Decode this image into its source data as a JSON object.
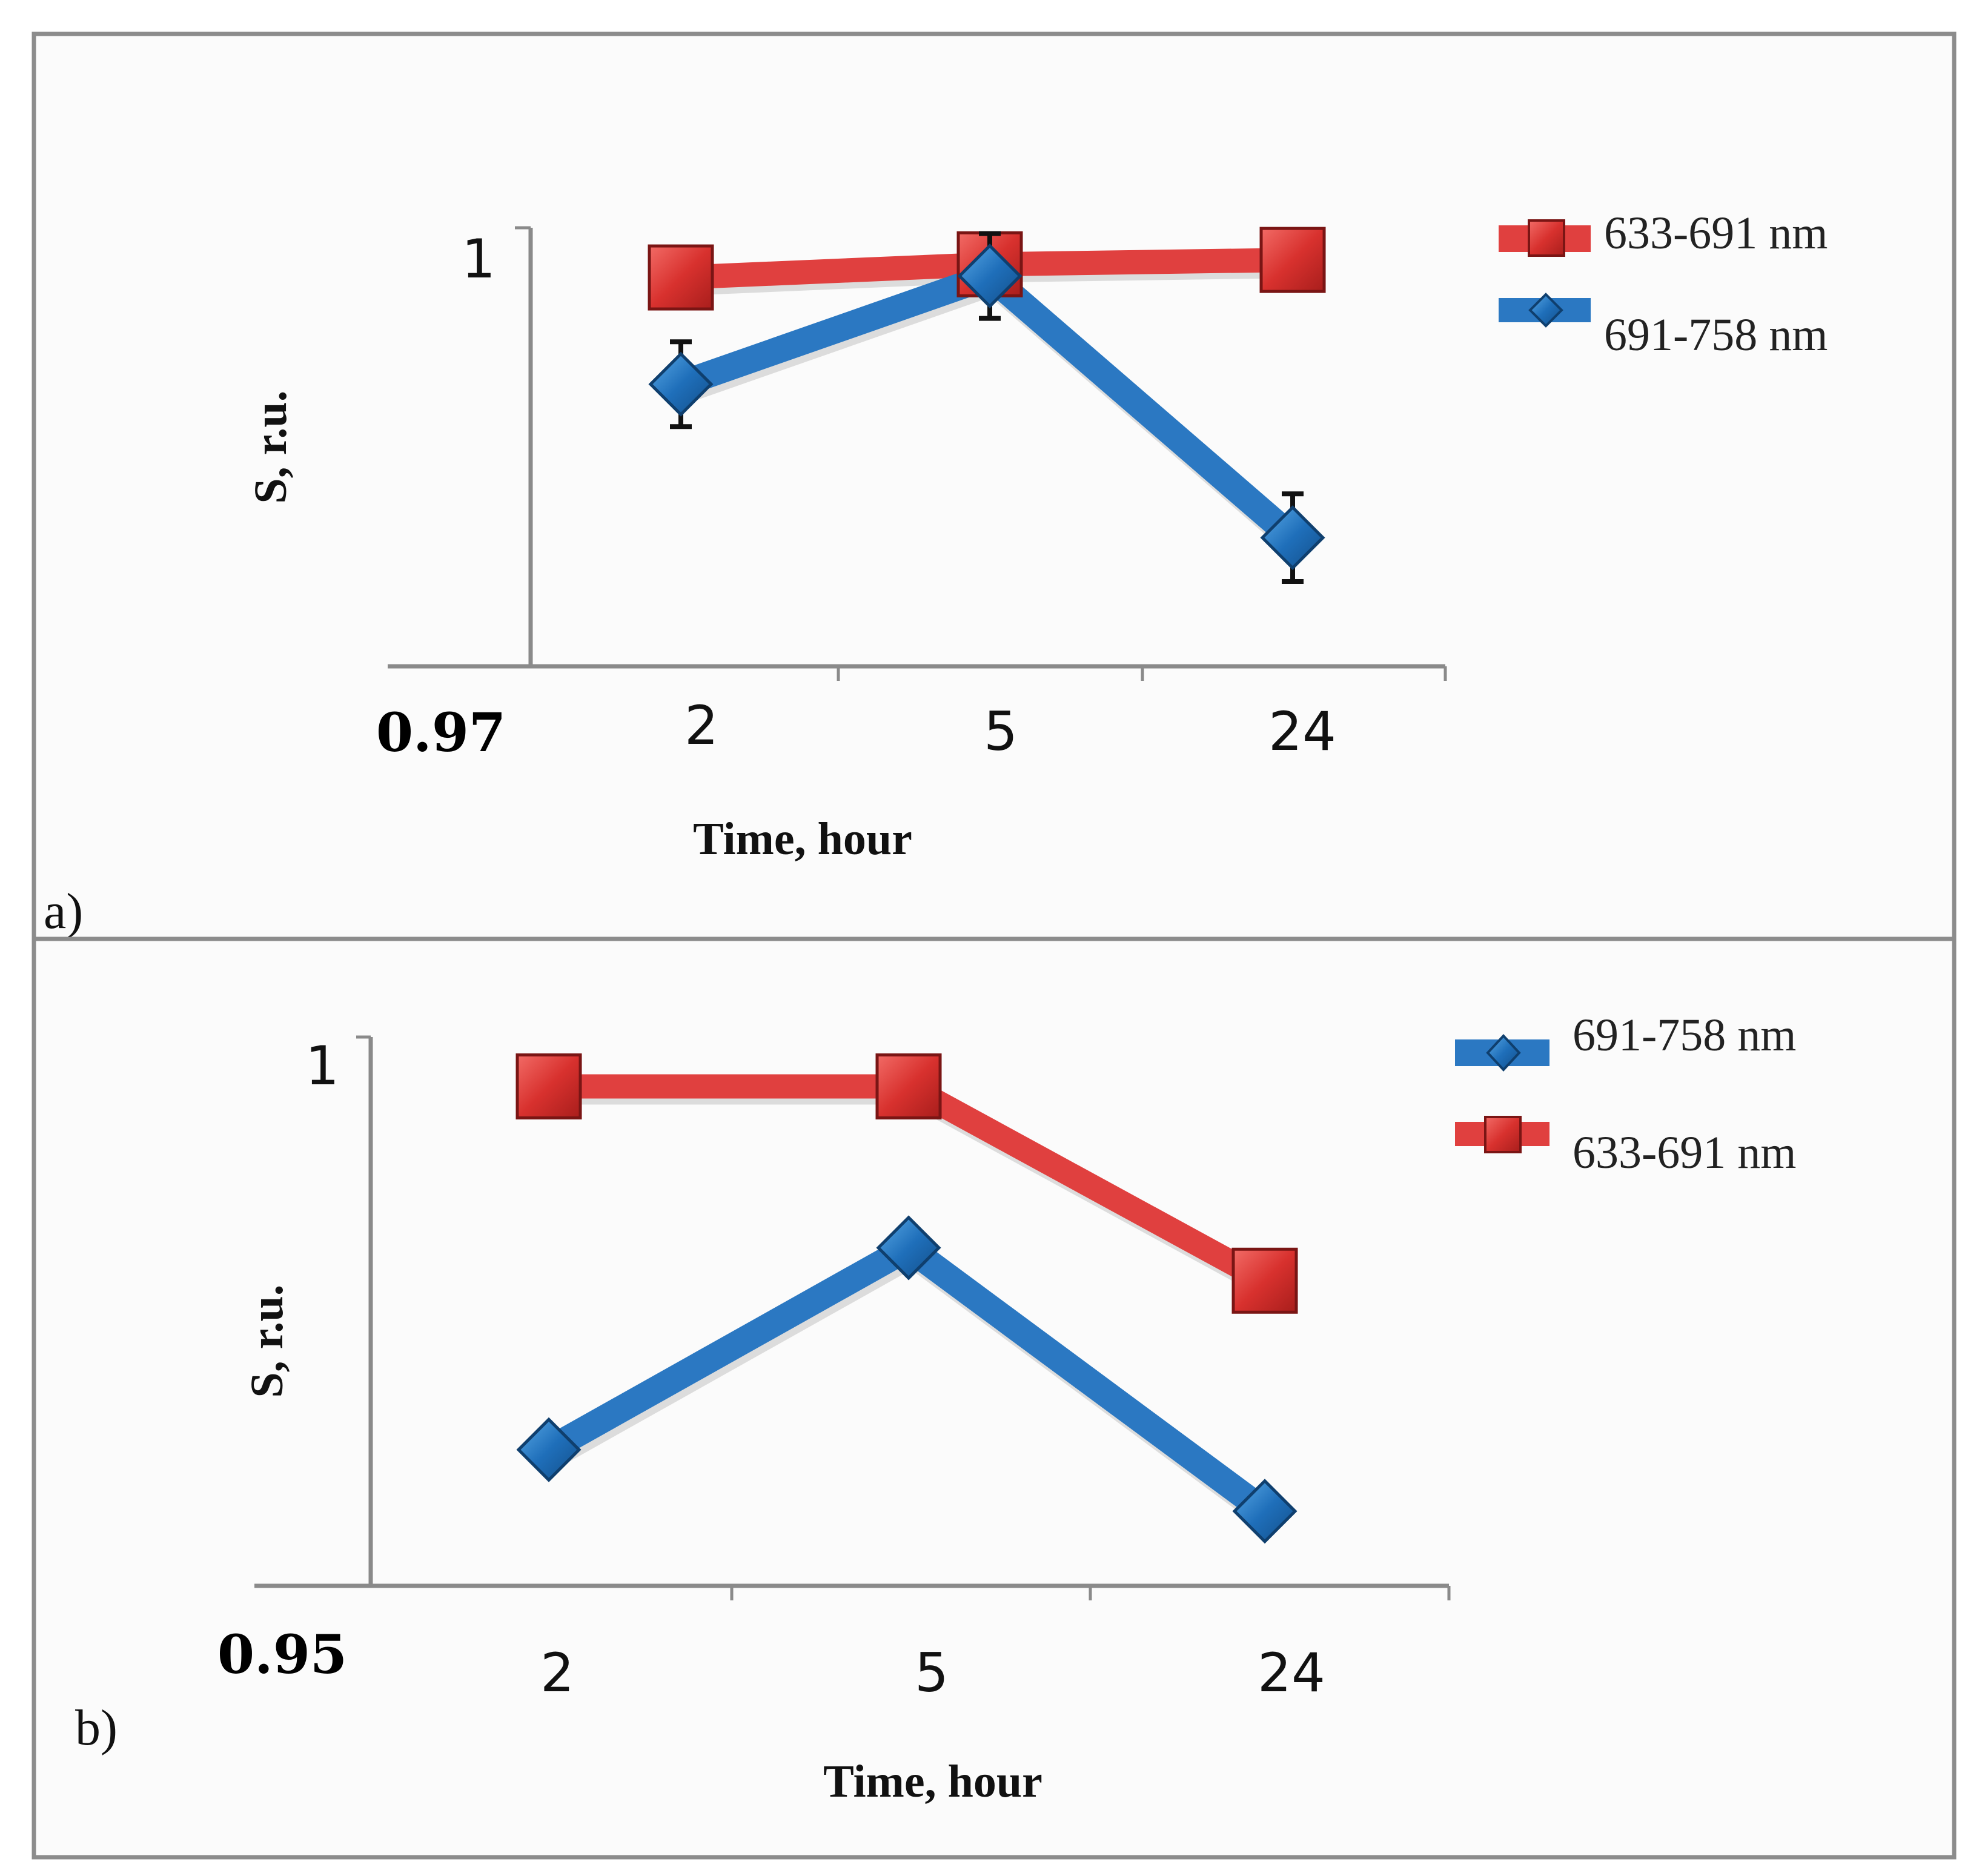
{
  "colors": {
    "red_series": "#e0403f",
    "red_marker": "#d8312e",
    "blue_series": "#2b78c2",
    "blue_marker": "#1f6fba"
  },
  "chart_data": [
    {
      "panel_label": "a)",
      "type": "line",
      "title": "",
      "xlabel": "Time, hour",
      "ylabel": "S, r.u.",
      "categories": [
        "2",
        "5",
        "24"
      ],
      "ylim": [
        0.97,
        1.0
      ],
      "y_tick_labels": {
        "min": "0.97",
        "max": "1"
      },
      "grid": false,
      "legend_position": "top-right",
      "series": [
        {
          "name": "633-691 nm",
          "marker": "square",
          "color": "red_series",
          "values": [
            0.9966,
            0.9975,
            0.9978
          ],
          "errors": [
            0.0,
            0.0,
            0.0
          ]
        },
        {
          "name": "691-758 nm",
          "marker": "diamond",
          "color": "blue_series",
          "values": [
            0.9893,
            0.9967,
            0.9788
          ],
          "errors": [
            0.0029,
            0.0029,
            0.003
          ]
        }
      ]
    },
    {
      "panel_label": "b)",
      "type": "line",
      "title": "",
      "xlabel": "Time, hour",
      "ylabel": "S, r.u.",
      "categories": [
        "2",
        "5",
        "24"
      ],
      "ylim": [
        0.95,
        1.0
      ],
      "y_tick_labels": {
        "min": "0.95",
        "max": "1"
      },
      "grid": false,
      "legend_position": "top-right",
      "series": [
        {
          "name": "691-758 nm",
          "marker": "diamond",
          "color": "blue_series",
          "values": [
            0.9624,
            0.9808,
            0.9568
          ],
          "errors": [
            0.0015,
            0.0015,
            0.0015
          ]
        },
        {
          "name": "633-691 nm",
          "marker": "square",
          "color": "red_series",
          "values": [
            0.9955,
            0.9955,
            0.9778
          ],
          "errors": [
            0.0,
            0.0,
            0.0
          ]
        }
      ]
    }
  ]
}
